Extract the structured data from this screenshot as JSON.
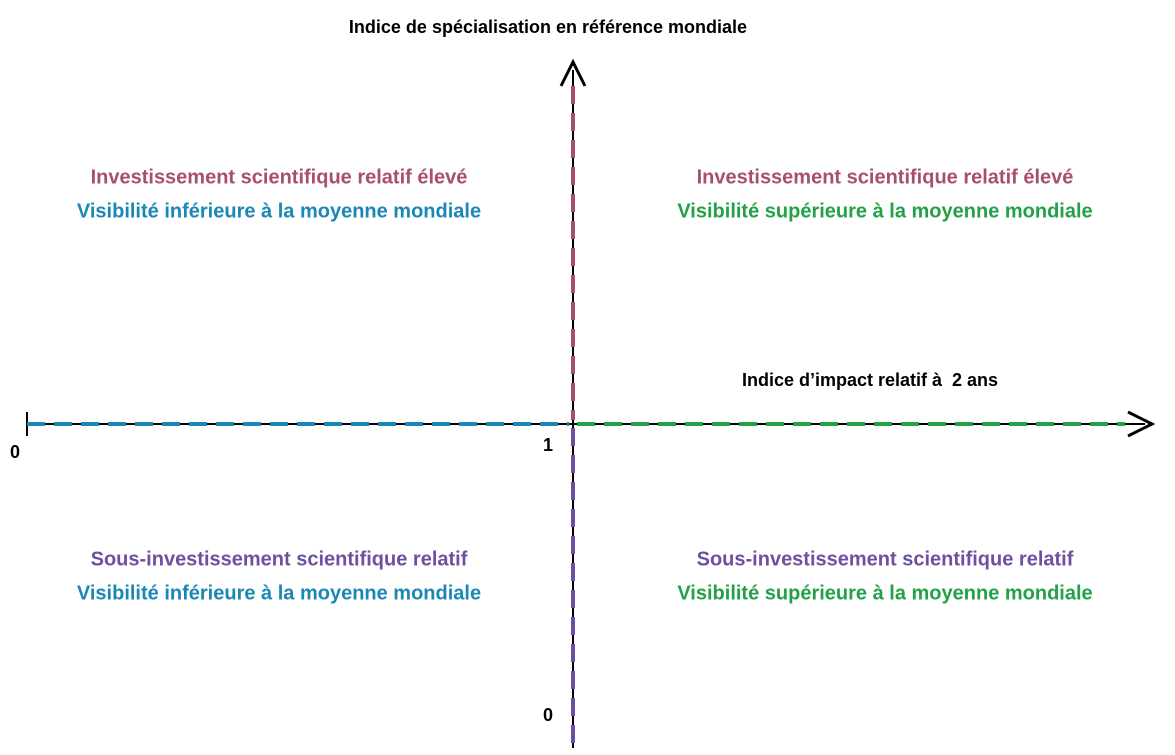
{
  "y_axis": {
    "title": "Indice de spécialisation en référence mondiale",
    "origin_label": "0"
  },
  "x_axis": {
    "title": "Indice d’impact relatif à  2 ans",
    "origin_label": "0",
    "mid_label": "1"
  },
  "quadrants": [
    {
      "position": "top-left",
      "line1": "Investissement scientifique relatif élevé",
      "line2": "Visibilité inférieure à la moyenne mondiale"
    },
    {
      "position": "top-right",
      "line1": "Investissement scientifique relatif élevé",
      "line2": "Visibilité supérieure à la moyenne mondiale"
    },
    {
      "position": "bottom-left",
      "line1": "Sous-investissement scientifique relatif",
      "line2": "Visibilité inférieure à la moyenne mondiale"
    },
    {
      "position": "bottom-right",
      "line1": "Sous-investissement scientifique relatif",
      "line2": "Visibilité supérieure à la moyenne mondiale"
    }
  ]
}
